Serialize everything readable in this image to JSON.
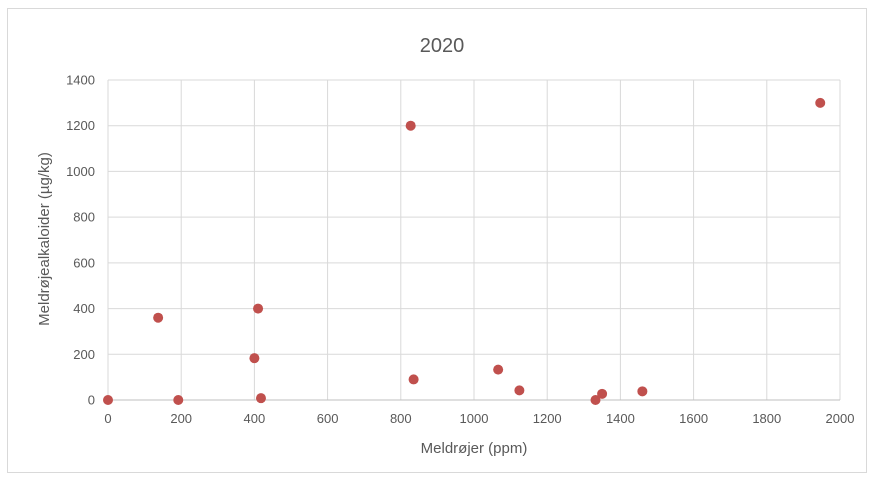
{
  "chart_data": {
    "type": "scatter",
    "title": "2020",
    "xlabel": "Meldrøjer (ppm)",
    "ylabel": "Meldrøjealkaloider (µg/kg)",
    "xlim": [
      0,
      2000
    ],
    "ylim": [
      0,
      1400
    ],
    "xticks": [
      0,
      200,
      400,
      600,
      800,
      1000,
      1200,
      1400,
      1600,
      1800,
      2000
    ],
    "yticks": [
      0,
      200,
      400,
      600,
      800,
      1000,
      1200,
      1400
    ],
    "grid": true,
    "legend": "none",
    "marker_color": "#c0504d",
    "series": [
      {
        "points": [
          {
            "x": 0,
            "y": 0
          },
          {
            "x": 137,
            "y": 360
          },
          {
            "x": 192,
            "y": 0
          },
          {
            "x": 400,
            "y": 183
          },
          {
            "x": 410,
            "y": 400
          },
          {
            "x": 418,
            "y": 8
          },
          {
            "x": 827,
            "y": 1200
          },
          {
            "x": 835,
            "y": 90
          },
          {
            "x": 1066,
            "y": 133
          },
          {
            "x": 1124,
            "y": 42
          },
          {
            "x": 1332,
            "y": 0
          },
          {
            "x": 1350,
            "y": 27
          },
          {
            "x": 1460,
            "y": 38
          },
          {
            "x": 1946,
            "y": 1300
          }
        ]
      }
    ]
  }
}
